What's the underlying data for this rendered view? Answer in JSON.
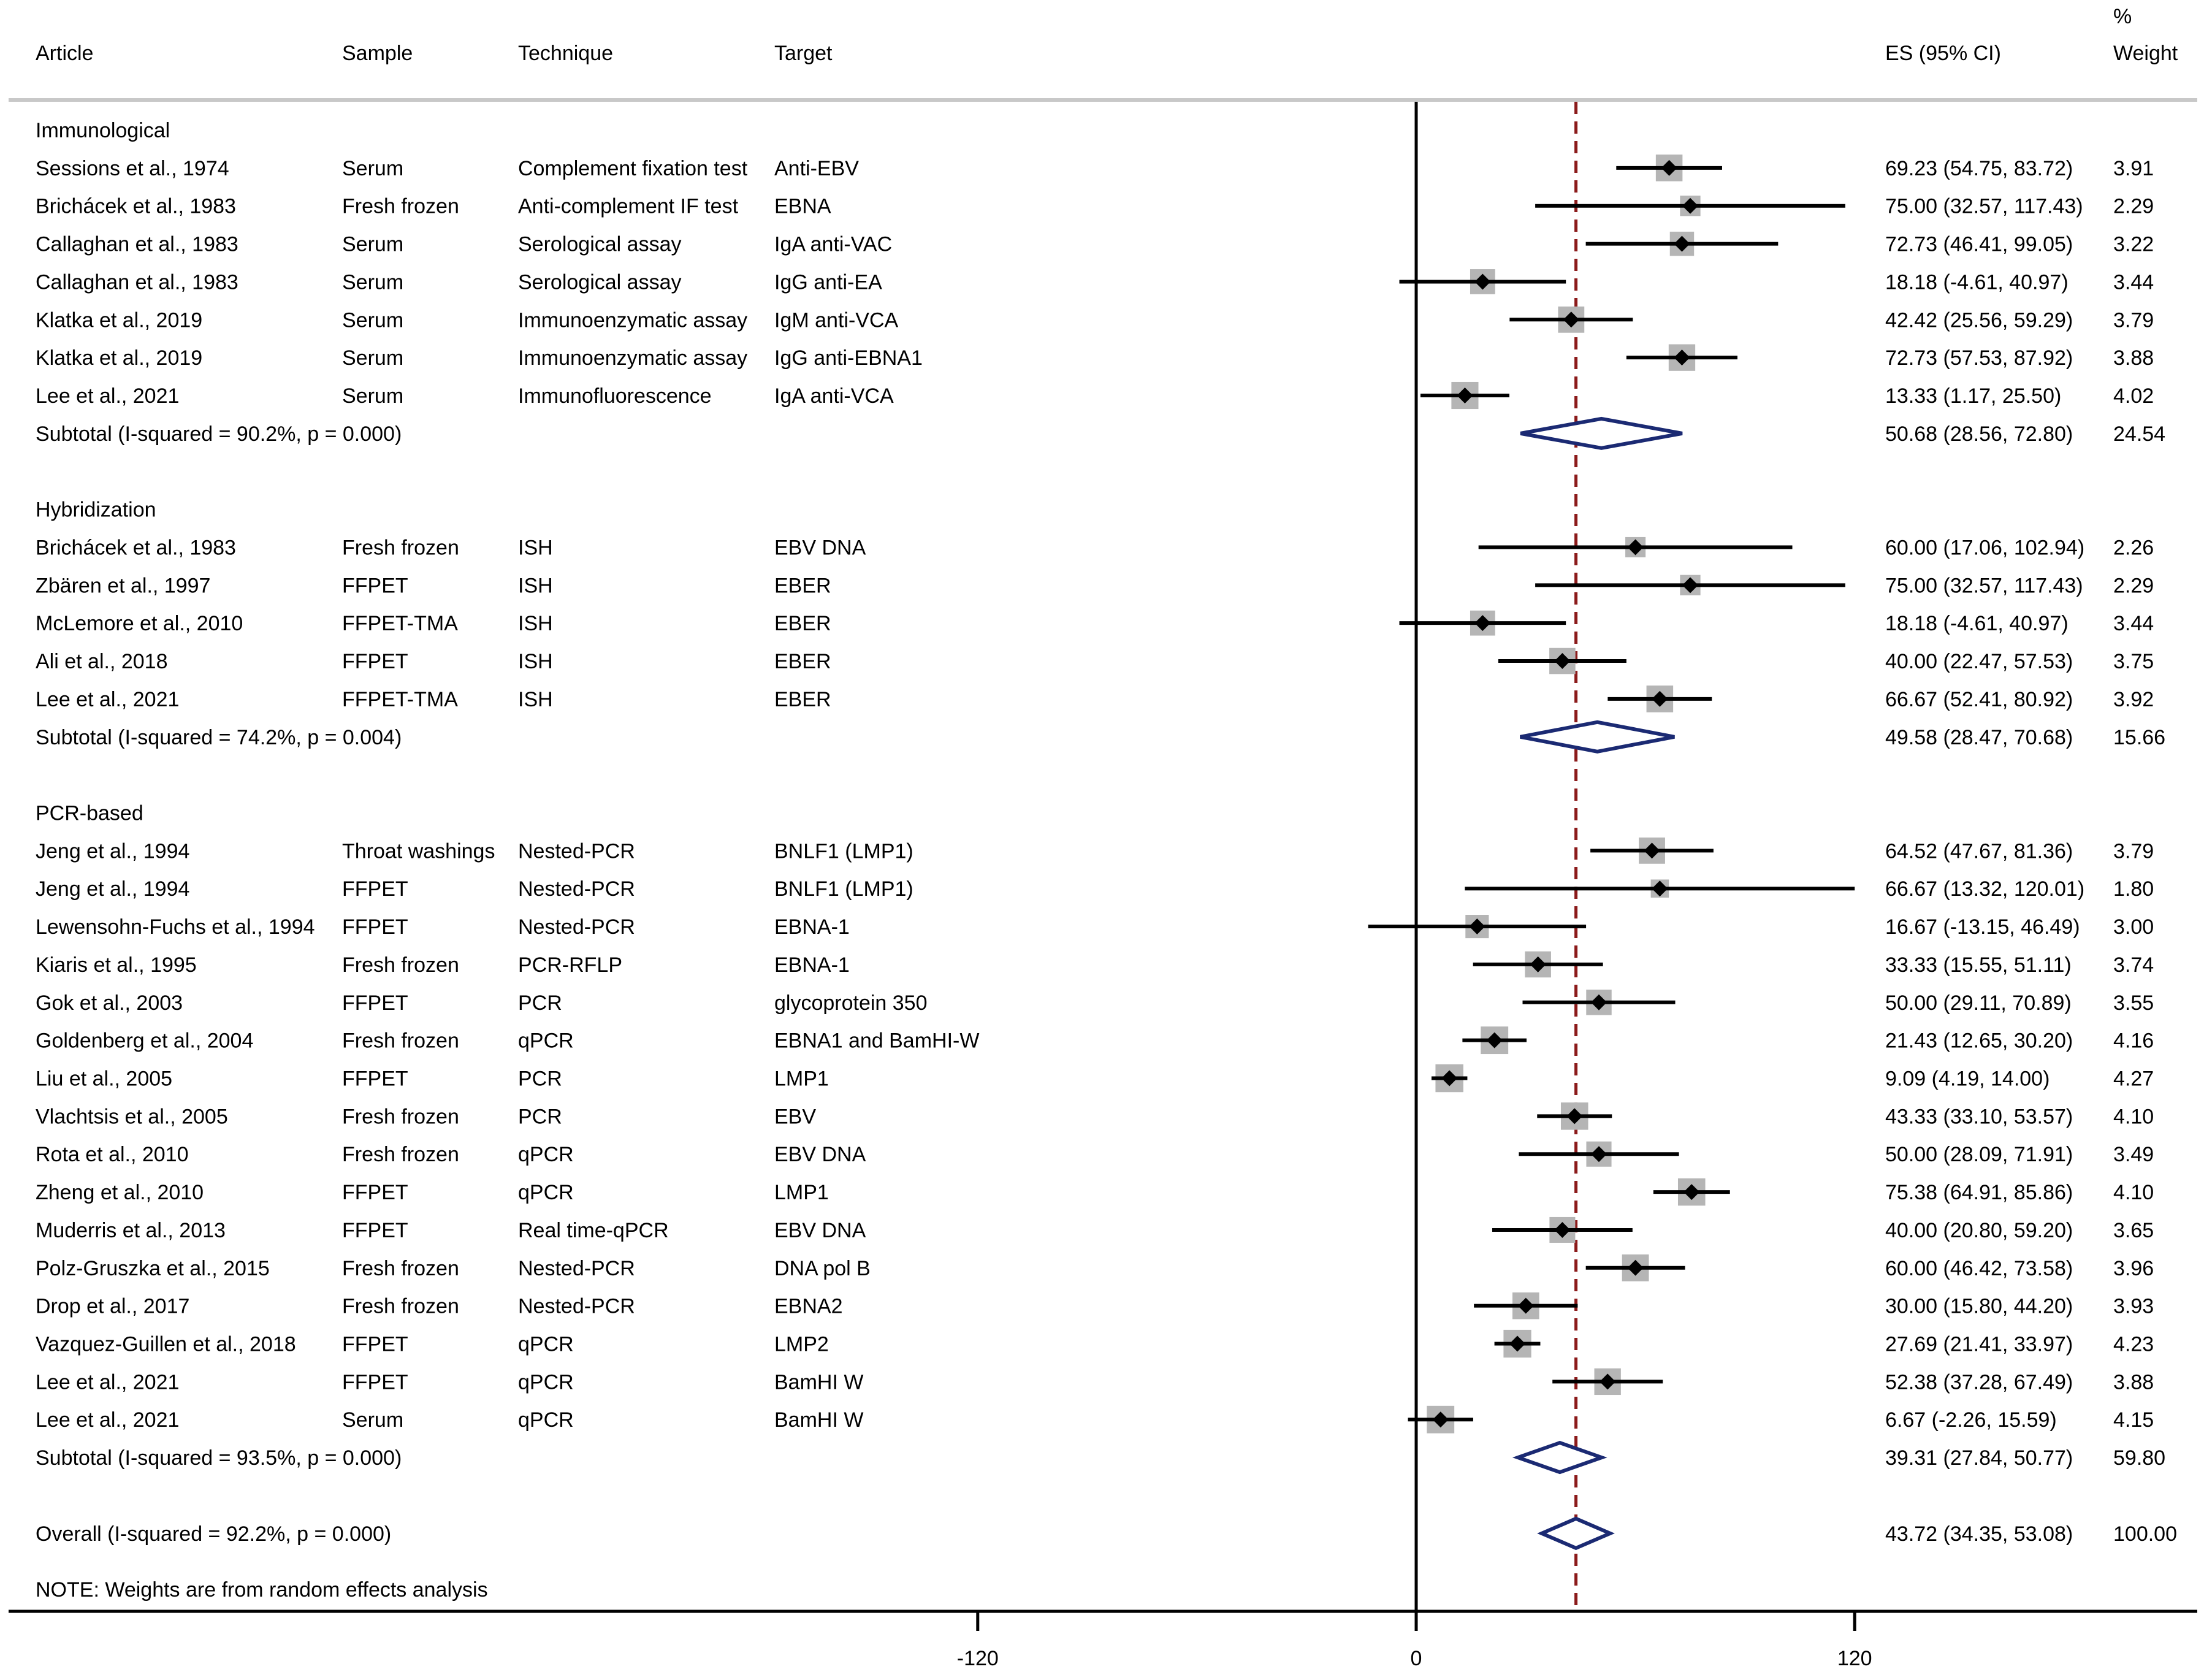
{
  "chart_data": {
    "type": "forest",
    "columns": {
      "article": "Article",
      "sample": "Sample",
      "technique": "Technique",
      "target": "Target",
      "es": "ES (95% CI)",
      "weight_line1": "%",
      "weight_line2": "Weight"
    },
    "x_axis": {
      "ticks": [
        -120,
        0,
        120
      ],
      "tick_labels": [
        "-120",
        "0",
        "120"
      ],
      "range": [
        -390,
        210
      ],
      "reference_line": 0,
      "overall_line": 43.72
    },
    "note": "NOTE: Weights are from random effects analysis",
    "groups": [
      {
        "name": "Immunological",
        "studies": [
          {
            "article": "Sessions et al., 1974",
            "sample": "Serum",
            "technique": "Complement fixation test",
            "target": "Anti-EBV",
            "es": 69.23,
            "lo": 54.75,
            "hi": 83.72,
            "es_text": "69.23 (54.75, 83.72)",
            "weight": 3.91,
            "weight_text": "3.91"
          },
          {
            "article": "Brichácek et al., 1983",
            "sample": "Fresh frozen",
            "technique": "Anti-complement IF test",
            "target": "EBNA",
            "es": 75.0,
            "lo": 32.57,
            "hi": 117.43,
            "es_text": "75.00 (32.57, 117.43)",
            "weight": 2.29,
            "weight_text": "2.29"
          },
          {
            "article": "Callaghan et al., 1983",
            "sample": "Serum",
            "technique": "Serological assay",
            "target": "IgA anti-VAC",
            "es": 72.73,
            "lo": 46.41,
            "hi": 99.05,
            "es_text": "72.73 (46.41, 99.05)",
            "weight": 3.22,
            "weight_text": "3.22"
          },
          {
            "article": "Callaghan et al., 1983",
            "sample": "Serum",
            "technique": "Serological assay",
            "target": "IgG anti-EA",
            "es": 18.18,
            "lo": -4.61,
            "hi": 40.97,
            "es_text": "18.18 (-4.61, 40.97)",
            "weight": 3.44,
            "weight_text": "3.44"
          },
          {
            "article": "Klatka et al., 2019",
            "sample": "Serum",
            "technique": "Immunoenzymatic assay",
            "target": "IgM anti-VCA",
            "es": 42.42,
            "lo": 25.56,
            "hi": 59.29,
            "es_text": "42.42 (25.56, 59.29)",
            "weight": 3.79,
            "weight_text": "3.79"
          },
          {
            "article": "Klatka et al., 2019",
            "sample": "Serum",
            "technique": "Immunoenzymatic assay",
            "target": "IgG anti-EBNA1",
            "es": 72.73,
            "lo": 57.53,
            "hi": 87.92,
            "es_text": "72.73 (57.53, 87.92)",
            "weight": 3.88,
            "weight_text": "3.88"
          },
          {
            "article": "Lee et al., 2021",
            "sample": "Serum",
            "technique": "Immunofluorescence",
            "target": "IgA anti-VCA",
            "es": 13.33,
            "lo": 1.17,
            "hi": 25.5,
            "es_text": "13.33 (1.17, 25.50)",
            "weight": 4.02,
            "weight_text": "4.02"
          }
        ],
        "subtotal": {
          "label": "Subtotal  (I-squared = 90.2%, p = 0.000)",
          "es": 50.68,
          "lo": 28.56,
          "hi": 72.8,
          "es_text": "50.68 (28.56, 72.80)",
          "weight_text": "24.54"
        }
      },
      {
        "name": "Hybridization",
        "studies": [
          {
            "article": "Brichácek et al., 1983",
            "sample": "Fresh frozen",
            "technique": "ISH",
            "target": "EBV DNA",
            "es": 60.0,
            "lo": 17.06,
            "hi": 102.94,
            "es_text": "60.00 (17.06, 102.94)",
            "weight": 2.26,
            "weight_text": "2.26"
          },
          {
            "article": "Zbären et al., 1997",
            "sample": "FFPET",
            "technique": "ISH",
            "target": "EBER",
            "es": 75.0,
            "lo": 32.57,
            "hi": 117.43,
            "es_text": "75.00 (32.57, 117.43)",
            "weight": 2.29,
            "weight_text": "2.29"
          },
          {
            "article": "McLemore et al., 2010",
            "sample": "FFPET-TMA",
            "technique": "ISH",
            "target": "EBER",
            "es": 18.18,
            "lo": -4.61,
            "hi": 40.97,
            "es_text": "18.18 (-4.61, 40.97)",
            "weight": 3.44,
            "weight_text": "3.44"
          },
          {
            "article": "Ali et al., 2018",
            "sample": "FFPET",
            "technique": "ISH",
            "target": "EBER",
            "es": 40.0,
            "lo": 22.47,
            "hi": 57.53,
            "es_text": "40.00 (22.47, 57.53)",
            "weight": 3.75,
            "weight_text": "3.75"
          },
          {
            "article": "Lee et al., 2021",
            "sample": "FFPET-TMA",
            "technique": "ISH",
            "target": "EBER",
            "es": 66.67,
            "lo": 52.41,
            "hi": 80.92,
            "es_text": "66.67 (52.41, 80.92)",
            "weight": 3.92,
            "weight_text": "3.92"
          }
        ],
        "subtotal": {
          "label": "Subtotal  (I-squared = 74.2%, p = 0.004)",
          "es": 49.58,
          "lo": 28.47,
          "hi": 70.68,
          "es_text": "49.58 (28.47, 70.68)",
          "weight_text": "15.66"
        }
      },
      {
        "name": "PCR-based",
        "studies": [
          {
            "article": "Jeng et al., 1994",
            "sample": "Throat washings",
            "technique": "Nested-PCR",
            "target": "BNLF1 (LMP1)",
            "es": 64.52,
            "lo": 47.67,
            "hi": 81.36,
            "es_text": "64.52 (47.67, 81.36)",
            "weight": 3.79,
            "weight_text": "3.79"
          },
          {
            "article": "Jeng et al., 1994",
            "sample": "FFPET",
            "technique": "Nested-PCR",
            "target": "BNLF1 (LMP1)",
            "es": 66.67,
            "lo": 13.32,
            "hi": 120.01,
            "es_text": "66.67 (13.32, 120.01)",
            "weight": 1.8,
            "weight_text": "1.80"
          },
          {
            "article": "Lewensohn-Fuchs et al., 1994",
            "sample": "FFPET",
            "technique": "Nested-PCR",
            "target": "EBNA-1",
            "es": 16.67,
            "lo": -13.15,
            "hi": 46.49,
            "es_text": "16.67 (-13.15, 46.49)",
            "weight": 3.0,
            "weight_text": "3.00"
          },
          {
            "article": "Kiaris et al., 1995",
            "sample": "Fresh frozen",
            "technique": "PCR-RFLP",
            "target": "EBNA-1",
            "es": 33.33,
            "lo": 15.55,
            "hi": 51.11,
            "es_text": "33.33 (15.55, 51.11)",
            "weight": 3.74,
            "weight_text": "3.74"
          },
          {
            "article": "Gok et al., 2003",
            "sample": "FFPET",
            "technique": "PCR",
            "target": "glycoprotein 350",
            "es": 50.0,
            "lo": 29.11,
            "hi": 70.89,
            "es_text": "50.00 (29.11, 70.89)",
            "weight": 3.55,
            "weight_text": "3.55"
          },
          {
            "article": "Goldenberg et al., 2004",
            "sample": "Fresh frozen",
            "technique": "qPCR",
            "target": "EBNA1 and BamHI-W",
            "es": 21.43,
            "lo": 12.65,
            "hi": 30.2,
            "es_text": "21.43 (12.65, 30.20)",
            "weight": 4.16,
            "weight_text": "4.16"
          },
          {
            "article": "Liu et al., 2005",
            "sample": "FFPET",
            "technique": "PCR",
            "target": "LMP1",
            "es": 9.09,
            "lo": 4.19,
            "hi": 14.0,
            "es_text": "9.09 (4.19, 14.00)",
            "weight": 4.27,
            "weight_text": "4.27"
          },
          {
            "article": "Vlachtsis et al., 2005",
            "sample": "Fresh frozen",
            "technique": "PCR",
            "target": "EBV",
            "es": 43.33,
            "lo": 33.1,
            "hi": 53.57,
            "es_text": "43.33 (33.10, 53.57)",
            "weight": 4.1,
            "weight_text": "4.10"
          },
          {
            "article": "Rota et al., 2010",
            "sample": "Fresh frozen",
            "technique": "qPCR",
            "target": "EBV DNA",
            "es": 50.0,
            "lo": 28.09,
            "hi": 71.91,
            "es_text": "50.00 (28.09, 71.91)",
            "weight": 3.49,
            "weight_text": "3.49"
          },
          {
            "article": "Zheng et al., 2010",
            "sample": "FFPET",
            "technique": "qPCR",
            "target": "LMP1",
            "es": 75.38,
            "lo": 64.91,
            "hi": 85.86,
            "es_text": "75.38 (64.91, 85.86)",
            "weight": 4.1,
            "weight_text": "4.10"
          },
          {
            "article": "Muderris et al., 2013",
            "sample": "FFPET",
            "technique": "Real time-qPCR",
            "target": "EBV DNA",
            "es": 40.0,
            "lo": 20.8,
            "hi": 59.2,
            "es_text": "40.00 (20.80, 59.20)",
            "weight": 3.65,
            "weight_text": "3.65"
          },
          {
            "article": "Polz-Gruszka et al., 2015",
            "sample": "Fresh frozen",
            "technique": "Nested-PCR",
            "target": "DNA pol B",
            "es": 60.0,
            "lo": 46.42,
            "hi": 73.58,
            "es_text": "60.00 (46.42, 73.58)",
            "weight": 3.96,
            "weight_text": "3.96"
          },
          {
            "article": "Drop et al., 2017",
            "sample": "Fresh frozen",
            "technique": "Nested-PCR",
            "target": "EBNA2",
            "es": 30.0,
            "lo": 15.8,
            "hi": 44.2,
            "es_text": "30.00 (15.80, 44.20)",
            "weight": 3.93,
            "weight_text": "3.93"
          },
          {
            "article": "Vazquez-Guillen et al., 2018",
            "sample": "FFPET",
            "technique": "qPCR",
            "target": "LMP2",
            "es": 27.69,
            "lo": 21.41,
            "hi": 33.97,
            "es_text": "27.69 (21.41, 33.97)",
            "weight": 4.23,
            "weight_text": "4.23"
          },
          {
            "article": "Lee et al., 2021",
            "sample": "FFPET",
            "technique": "qPCR",
            "target": "BamHI W",
            "es": 52.38,
            "lo": 37.28,
            "hi": 67.49,
            "es_text": "52.38 (37.28, 67.49)",
            "weight": 3.88,
            "weight_text": "3.88"
          },
          {
            "article": "Lee et al., 2021",
            "sample": "Serum",
            "technique": "qPCR",
            "target": "BamHI W",
            "es": 6.67,
            "lo": -2.26,
            "hi": 15.59,
            "es_text": "6.67 (-2.26, 15.59)",
            "weight": 4.15,
            "weight_text": "4.15"
          }
        ],
        "subtotal": {
          "label": "Subtotal  (I-squared = 93.5%, p = 0.000)",
          "es": 39.31,
          "lo": 27.84,
          "hi": 50.77,
          "es_text": "39.31 (27.84, 50.77)",
          "weight_text": "59.80"
        }
      }
    ],
    "overall": {
      "label": "Overall  (I-squared = 92.2%, p = 0.000)",
      "es": 43.72,
      "lo": 34.35,
      "hi": 53.08,
      "es_text": "43.72 (34.35, 53.08)",
      "weight_text": "100.00"
    },
    "colors": {
      "ci_line": "#000000",
      "weight_box": "#b5b5b5",
      "point": "#000000",
      "diamond": "#1b2a73",
      "overall_line": "#8b1a1a",
      "rule": "#c8c8c8"
    }
  }
}
